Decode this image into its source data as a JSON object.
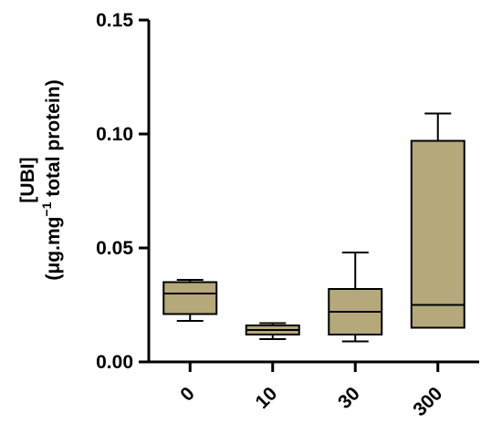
{
  "chart_data": {
    "type": "box",
    "title": "",
    "xlabel": "",
    "ylabel_line1": "[UBI]",
    "ylabel_line2_prefix": "(μg.mg",
    "ylabel_line2_sup": "−1",
    "ylabel_line2_suffix": " total protein)",
    "ylim": [
      0,
      0.15
    ],
    "yticks": [
      0.0,
      0.05,
      0.1,
      0.15
    ],
    "ytick_labels": [
      "0.00",
      "0.05",
      "0.10",
      "0.15"
    ],
    "categories": [
      "0",
      "10",
      "30",
      "300"
    ],
    "boxes": [
      {
        "category": "0",
        "min": 0.018,
        "q1": 0.021,
        "median": 0.03,
        "q3": 0.035,
        "max": 0.036
      },
      {
        "category": "10",
        "min": 0.01,
        "q1": 0.012,
        "median": 0.014,
        "q3": 0.016,
        "max": 0.017
      },
      {
        "category": "30",
        "min": 0.009,
        "q1": 0.012,
        "median": 0.022,
        "q3": 0.032,
        "max": 0.048
      },
      {
        "category": "300",
        "min": 0.015,
        "q1": 0.015,
        "median": 0.025,
        "q3": 0.097,
        "max": 0.109
      }
    ],
    "box_color": "#b5a87a",
    "grid": false,
    "legend": "none"
  }
}
